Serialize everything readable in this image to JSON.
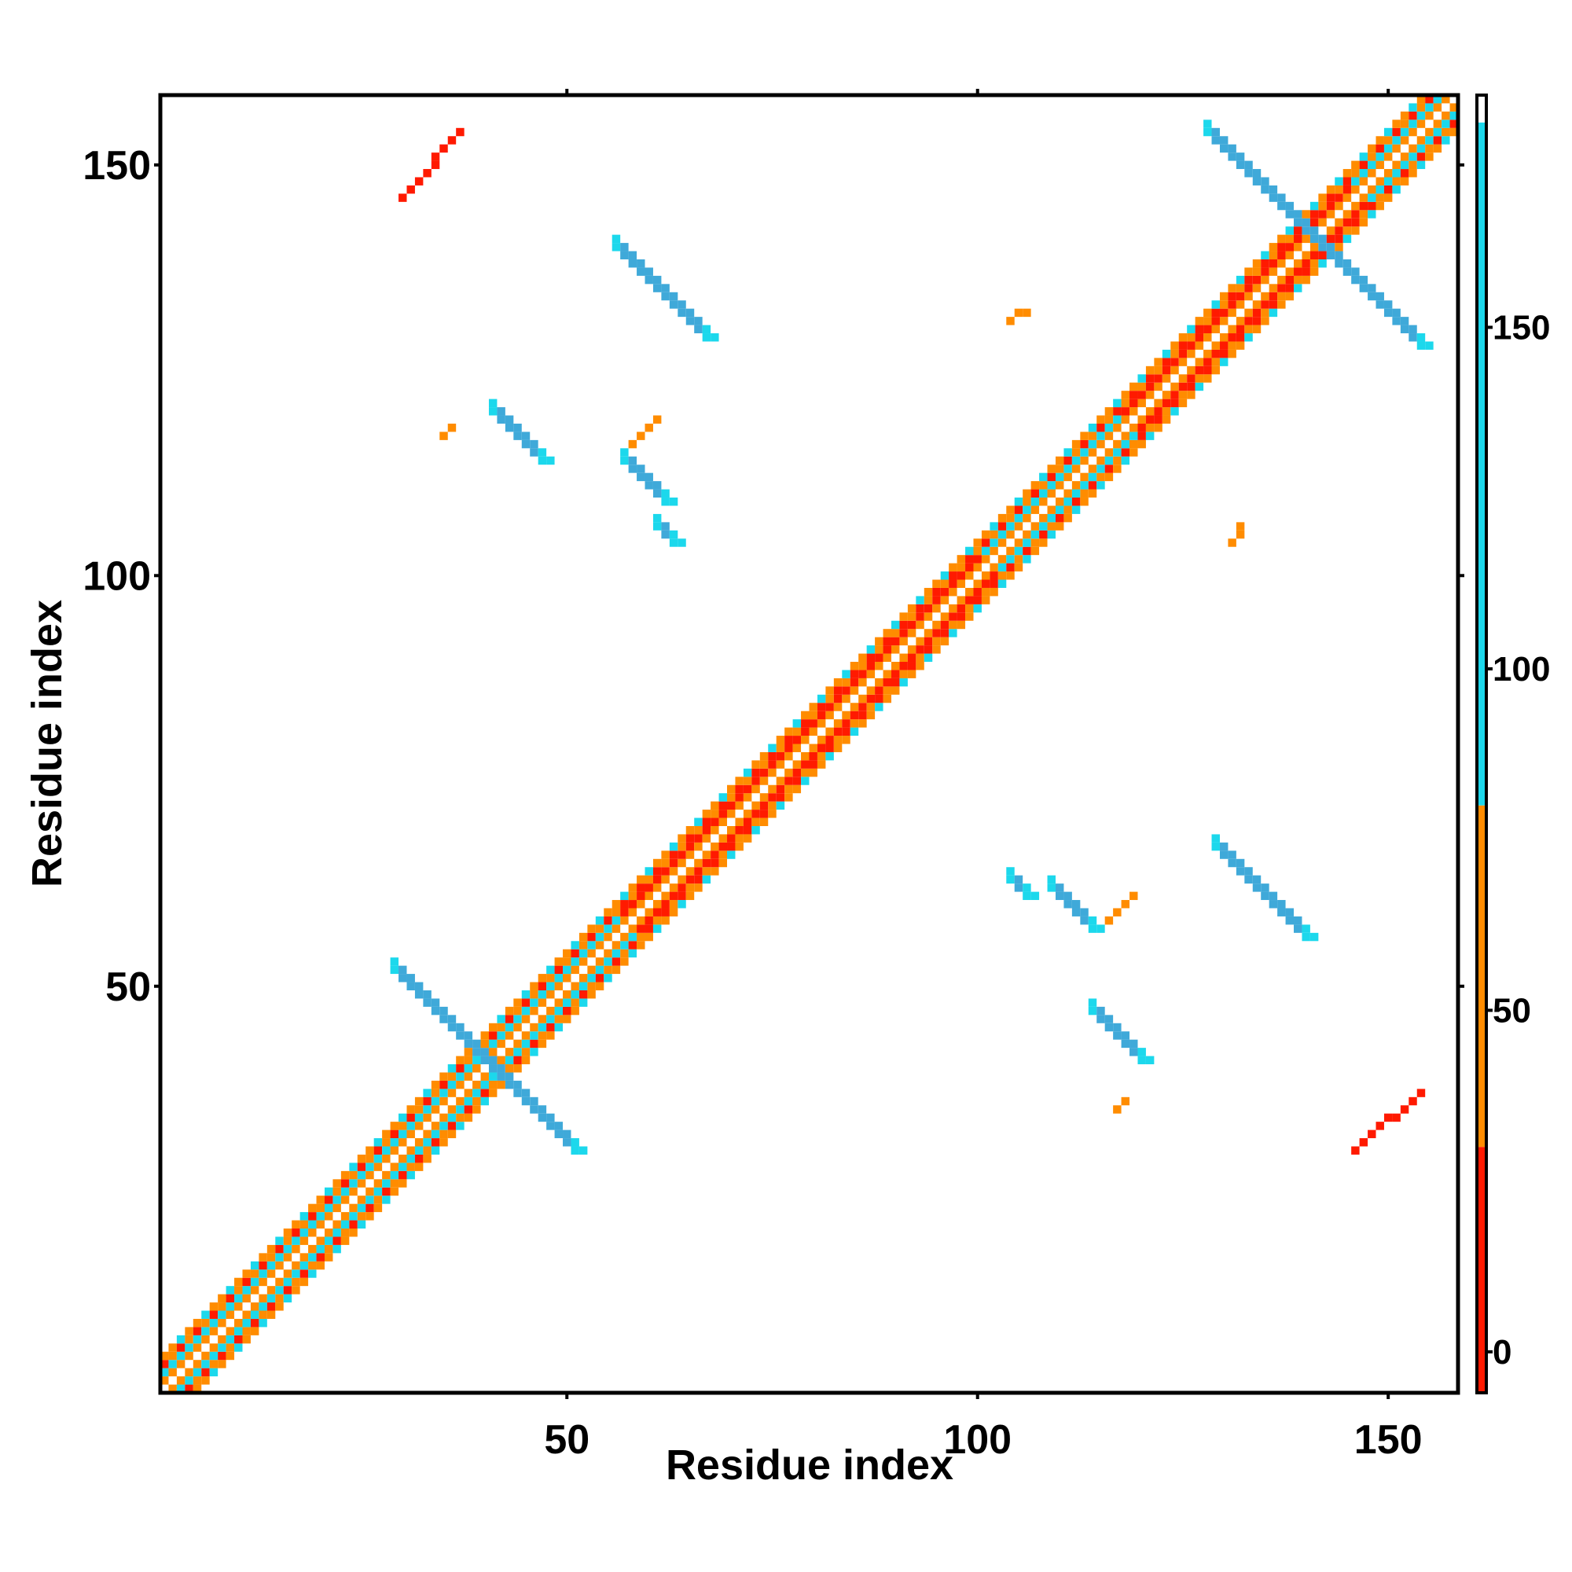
{
  "chart_data": {
    "type": "heatmap",
    "xlabel": "Residue index",
    "ylabel": "Residue index",
    "xlim": [
      0.5,
      158.5
    ],
    "ylim": [
      0.5,
      158.5
    ],
    "x_ticks": [
      50,
      100,
      150
    ],
    "y_ticks": [
      50,
      100,
      150
    ],
    "x_tick_labels": [
      "50",
      "100",
      "150"
    ],
    "y_tick_labels": [
      "50",
      "100",
      "150"
    ],
    "colorbar": {
      "range": [
        -6,
        184
      ],
      "ticks": [
        0,
        50,
        100,
        150
      ],
      "tick_labels": [
        "0",
        "50",
        "100",
        "150"
      ],
      "bands": [
        {
          "from": -6,
          "to": 30,
          "color": "#ff1a00"
        },
        {
          "from": 30,
          "to": 80,
          "color": "#ff8c00"
        },
        {
          "from": 80,
          "to": 180,
          "color": "#1cd8ec"
        },
        {
          "from": 180,
          "to": 184,
          "color": "#ffffff"
        }
      ]
    },
    "colors": {
      "red": "#ff1a00",
      "orange": "#ff8c00",
      "cyan": "#1cd8ec",
      "steel": "#4a8fc6",
      "mid_blue": "#3fa9d9",
      "background": "#ffffff"
    },
    "diagonal_bands": [
      {
        "start": 1,
        "end": 158,
        "offsets": [
          1,
          2,
          3,
          4
        ]
      }
    ],
    "antiparallel_strands": [
      {
        "x_from": 29,
        "y_from": 52,
        "x_to": 51,
        "y_to": 30,
        "width": 2
      },
      {
        "x_from": 128,
        "y_from": 154,
        "x_to": 154,
        "y_to": 128,
        "width": 2
      },
      {
        "x_from": 56,
        "y_from": 140,
        "x_to": 67,
        "y_to": 129,
        "width": 2
      },
      {
        "x_from": 129,
        "y_from": 67,
        "x_to": 140,
        "y_to": 56,
        "width": 2
      },
      {
        "x_from": 41,
        "y_from": 120,
        "x_to": 47,
        "y_to": 114,
        "width": 2
      },
      {
        "x_from": 114,
        "y_from": 47,
        "x_to": 120,
        "y_to": 41,
        "width": 2
      },
      {
        "x_from": 57,
        "y_from": 114,
        "x_to": 62,
        "y_to": 109,
        "width": 2
      },
      {
        "x_from": 109,
        "y_from": 62,
        "x_to": 114,
        "y_to": 57,
        "width": 2
      },
      {
        "x_from": 61,
        "y_from": 106,
        "x_to": 63,
        "y_to": 104,
        "width": 2
      },
      {
        "x_from": 104,
        "y_from": 63,
        "x_to": 106,
        "y_to": 61,
        "width": 2
      }
    ],
    "tertiary_contacts": [
      {
        "x_from": 30,
        "y_from": 146,
        "x_to": 37,
        "y_to": 154,
        "value": 10
      },
      {
        "x_from": 146,
        "y_from": 30,
        "x_to": 154,
        "y_to": 37,
        "value": 10
      },
      {
        "x_from": 104,
        "y_from": 131,
        "x_to": 106,
        "y_to": 132,
        "value": 60
      },
      {
        "x_from": 131,
        "y_from": 104,
        "x_to": 132,
        "y_to": 106,
        "value": 60
      },
      {
        "x_from": 58,
        "y_from": 116,
        "x_to": 61,
        "y_to": 119,
        "value": 40
      },
      {
        "x_from": 116,
        "y_from": 58,
        "x_to": 119,
        "y_to": 61,
        "value": 40
      },
      {
        "x_from": 35,
        "y_from": 117,
        "x_to": 36,
        "y_to": 118,
        "value": 45
      },
      {
        "x_from": 117,
        "y_from": 35,
        "x_to": 118,
        "y_to": 36,
        "value": 45
      }
    ]
  }
}
